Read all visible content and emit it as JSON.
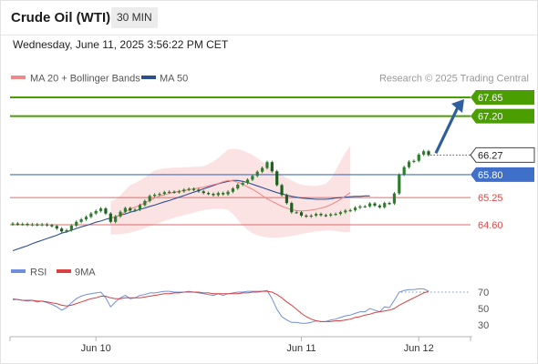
{
  "header": {
    "title": "Crude Oil (WTI)",
    "interval": "30 MIN",
    "datetime": "Wednesday, June 11, 2025 3:56:22 PM CET"
  },
  "legend": {
    "ma20": "MA 20 + Bollinger Bands",
    "ma50": "MA 50",
    "credit": "Research © 2025 Trading Central",
    "rsi": "RSI",
    "ma9": "9MA"
  },
  "colors": {
    "green": "#4a9e00",
    "blue": "#3f6fc8",
    "red_line": "#e06a6a",
    "ma20": "#f08a8a",
    "band": "#fbdada",
    "candle": "#2d7d2d",
    "arrow": "#2f5f9e",
    "rsi": "#6f8fdc",
    "rsi_ma": "#d94040"
  },
  "chart_data": [
    {
      "type": "candlestick",
      "title": "Crude Oil (WTI)",
      "ylim": [
        63.75,
        68.05
      ],
      "x_ticks": [
        "Jun 10",
        "Jun 11",
        "Jun 12"
      ],
      "levels": [
        {
          "value": 67.65,
          "label": "67.65",
          "style": "resistance"
        },
        {
          "value": 67.2,
          "label": "67.20",
          "style": "resistance"
        },
        {
          "value": 66.27,
          "label": "66.27",
          "style": "last"
        },
        {
          "value": 65.8,
          "label": "65.80",
          "style": "pivot"
        },
        {
          "value": 65.25,
          "label": "65.25",
          "style": "support"
        },
        {
          "value": 64.6,
          "label": "64.60",
          "style": "support"
        }
      ],
      "closes": [
        64.63,
        64.61,
        64.62,
        64.6,
        64.61,
        64.6,
        64.61,
        64.59,
        64.57,
        64.51,
        64.44,
        64.47,
        64.58,
        64.67,
        64.73,
        64.79,
        64.87,
        64.93,
        64.99,
        64.87,
        64.67,
        64.8,
        64.91,
        65.0,
        64.94,
        64.96,
        65.07,
        65.17,
        65.29,
        65.32,
        65.34,
        65.38,
        65.39,
        65.38,
        65.4,
        65.44,
        65.46,
        65.44,
        65.4,
        65.36,
        65.34,
        65.31,
        65.36,
        65.33,
        65.39,
        65.47,
        65.56,
        65.6,
        65.68,
        65.77,
        65.87,
        65.96,
        66.1,
        65.88,
        65.55,
        65.31,
        65.12,
        64.9,
        64.9,
        64.82,
        64.8,
        64.82,
        64.86,
        64.83,
        64.82,
        64.85,
        64.86,
        64.9,
        64.94,
        64.95,
        65.01,
        65.04,
        65.04,
        65.11,
        65.06,
        65.02,
        65.12,
        65.11,
        65.35,
        65.8,
        65.98,
        66.11,
        66.13,
        66.28,
        66.36,
        66.27
      ],
      "ma20": {
        "name": "MA 20 + Bollinger Bands",
        "from_index": 20,
        "values": [
          64.76,
          64.79,
          64.84,
          64.91,
          64.98,
          65.02,
          65.07,
          65.12,
          65.18,
          65.24,
          65.29,
          65.32,
          65.35,
          65.38,
          65.4,
          65.42,
          65.44,
          65.46,
          65.48,
          65.5,
          65.53,
          65.56,
          65.59,
          65.63,
          65.66,
          65.65,
          65.62,
          65.57,
          65.51,
          65.45,
          65.38,
          65.3,
          65.22,
          65.16,
          65.1,
          65.04,
          65.0,
          64.96,
          64.94,
          64.93,
          64.94,
          64.95,
          64.97,
          65.0,
          65.03,
          65.08,
          65.14,
          65.21,
          65.29,
          65.37
        ]
      },
      "ma50": {
        "name": "MA 50",
        "from_index": 0,
        "values": [
          63.98,
          64.02,
          64.06,
          64.1,
          64.15,
          64.19,
          64.23,
          64.27,
          64.31,
          64.35,
          64.4,
          64.43,
          64.47,
          64.51,
          64.55,
          64.58,
          64.62,
          64.66,
          64.69,
          64.73,
          64.76,
          64.79,
          64.83,
          64.86,
          64.9,
          64.93,
          64.97,
          65.0,
          65.04,
          65.07,
          65.11,
          65.15,
          65.18,
          65.22,
          65.26,
          65.3,
          65.34,
          65.38,
          65.42,
          65.46,
          65.5,
          65.54,
          65.58,
          65.61,
          65.64,
          65.66,
          65.66,
          65.64,
          65.61,
          65.57,
          65.53,
          65.49,
          65.45,
          65.41,
          65.37,
          65.34,
          65.31,
          65.28,
          65.26,
          65.24,
          65.23,
          65.22,
          65.21,
          65.21,
          65.21,
          65.22,
          65.24,
          65.25,
          65.26,
          65.27,
          65.28,
          65.28,
          65.29,
          65.29
        ]
      },
      "bollinger": {
        "from_index": 20,
        "upper": [
          65.15,
          65.21,
          65.3,
          65.43,
          65.55,
          65.6,
          65.66,
          65.73,
          65.82,
          65.9,
          65.93,
          65.95,
          65.96,
          65.97,
          65.97,
          65.98,
          65.98,
          65.99,
          65.99,
          66.0,
          66.05,
          66.12,
          66.2,
          66.3,
          66.4,
          66.42,
          66.41,
          66.38,
          66.33,
          66.27,
          66.2,
          66.11,
          66.02,
          65.94,
          65.86,
          65.79,
          65.72,
          65.66,
          65.6,
          65.56,
          65.54,
          65.53,
          65.53,
          65.55,
          65.58,
          65.7,
          65.9,
          66.12,
          66.33,
          66.5
        ],
        "lower": [
          64.37,
          64.37,
          64.38,
          64.39,
          64.41,
          64.44,
          64.48,
          64.52,
          64.56,
          64.6,
          64.65,
          64.69,
          64.73,
          64.77,
          64.8,
          64.83,
          64.86,
          64.89,
          64.92,
          64.95,
          64.97,
          64.98,
          64.98,
          64.98,
          64.96,
          64.86,
          64.72,
          64.58,
          64.48,
          64.4,
          64.35,
          64.32,
          64.3,
          64.29,
          64.29,
          64.3,
          64.31,
          64.33,
          64.35,
          64.38,
          64.4,
          64.42,
          64.44,
          64.45,
          64.46,
          64.46,
          64.45,
          64.43,
          64.42,
          64.43
        ]
      },
      "forecast_arrow": {
        "from": 66.27,
        "to": 67.65
      }
    },
    {
      "type": "line",
      "title": "RSI",
      "ylim": [
        25,
        75
      ],
      "y_ticks": [
        30,
        50,
        70
      ],
      "x_ticks": [
        "Jun 10",
        "Jun 11",
        "Jun 12"
      ],
      "series": [
        {
          "name": "RSI",
          "values": [
            62,
            61,
            60,
            59,
            60,
            58,
            59,
            57,
            55,
            52,
            48,
            51,
            57,
            62,
            65,
            67,
            68,
            69,
            70,
            63,
            52,
            58,
            63,
            66,
            62,
            63,
            66,
            67,
            69,
            69,
            70,
            71,
            71,
            70,
            70,
            70,
            71,
            70,
            69,
            68,
            67,
            66,
            68,
            66,
            68,
            69,
            70,
            70,
            71,
            71,
            71,
            71,
            72,
            62,
            49,
            40,
            36,
            33,
            33,
            32,
            32,
            33,
            35,
            34,
            34,
            36,
            37,
            39,
            41,
            42,
            44,
            46,
            46,
            50,
            48,
            46,
            52,
            51,
            60,
            70,
            72,
            73,
            73,
            74,
            74,
            71
          ]
        },
        {
          "name": "9MA",
          "values": [
            61,
            61,
            60,
            60,
            60,
            59,
            59,
            58,
            57,
            56,
            54,
            53,
            54,
            56,
            58,
            60,
            62,
            63,
            65,
            65,
            63,
            62,
            62,
            63,
            63,
            63,
            63,
            64,
            65,
            66,
            67,
            68,
            68,
            69,
            69,
            70,
            70,
            70,
            70,
            69,
            69,
            68,
            68,
            68,
            68,
            68,
            68,
            69,
            69,
            70,
            70,
            71,
            71,
            70,
            67,
            63,
            58,
            54,
            49,
            44,
            40,
            37,
            35,
            34,
            34,
            34,
            35,
            35,
            36,
            37,
            39,
            40,
            42,
            43,
            45,
            46,
            47,
            48,
            50,
            54,
            57,
            60,
            63,
            66,
            69,
            71
          ]
        }
      ]
    }
  ]
}
